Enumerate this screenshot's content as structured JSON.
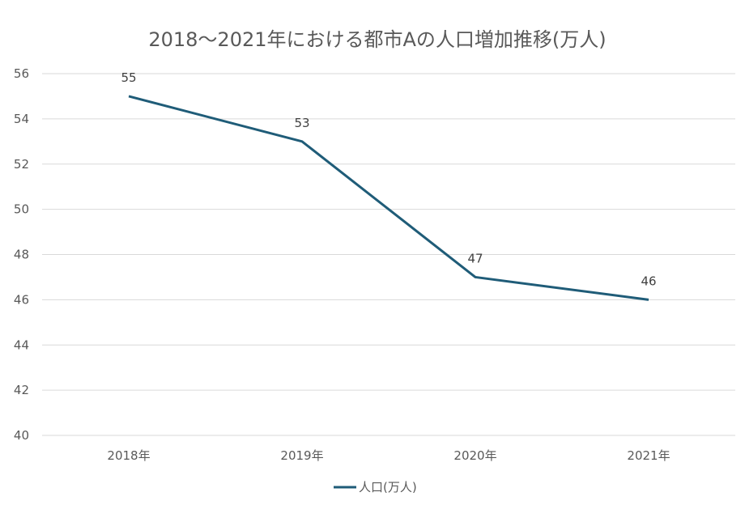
{
  "chart_data": {
    "type": "line",
    "title": "2018～2021年における都市Aの人口増加推移(万人)",
    "categories": [
      "2018年",
      "2019年",
      "2020年",
      "2021年"
    ],
    "series": [
      {
        "name": "人口(万人)",
        "values": [
          55,
          53,
          47,
          46
        ],
        "color": "#1f5c78"
      }
    ],
    "ylim": [
      40,
      56
    ],
    "yticks": [
      40,
      42,
      44,
      46,
      48,
      50,
      52,
      54,
      56
    ],
    "grid": true,
    "legend": "bottom"
  }
}
